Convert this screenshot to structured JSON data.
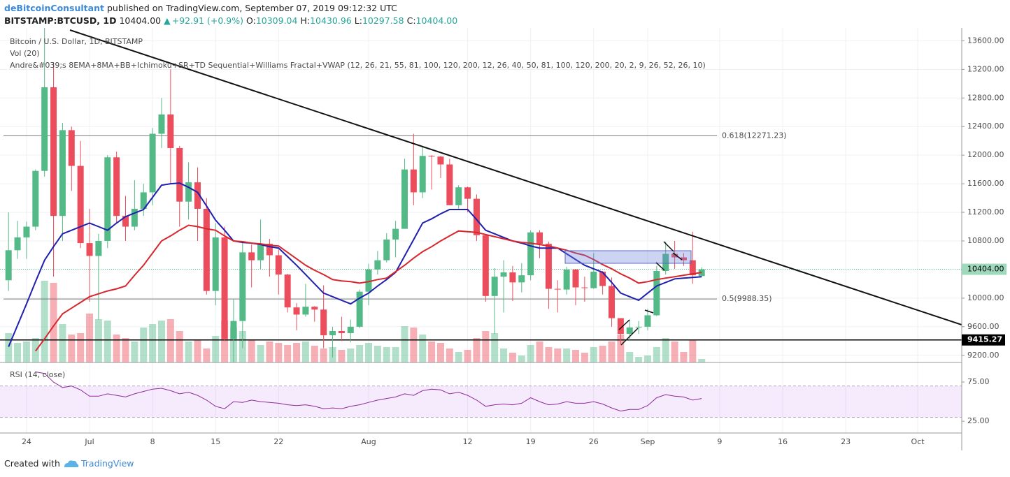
{
  "header": {
    "author": "deBitcoinConsultant",
    "published": "published on TradingView.com, September 07, 2019 09:12:32 UTC",
    "symbol": "BITSTAMP:BTCUSD, 1D",
    "price": "10404.00",
    "arrow": "▲",
    "change": "+92.91 (+0.9%)",
    "ohlc": [
      {
        "key": "O:",
        "value": "10309.04"
      },
      {
        "key": "H:",
        "value": "10430.96"
      },
      {
        "key": "L:",
        "value": "10297.58"
      },
      {
        "key": "C:",
        "value": "10404.00"
      }
    ]
  },
  "chart_data": {
    "type": "candlestick",
    "title": "Bitcoin / U.S. Dollar, 1D, BITSTAMP",
    "indicators": [
      "Vol (20)",
      "Andre&#039;s 8EMA+8MA+BB+Ichimoku+SR+TD Sequential+Williams Fractal+VWAP (12, 26, 21, 55, 81, 100, 120, 200, 12, 26, 40, 50, 81, 100, 120, 200, 20, 2, 9, 26, 52, 26, 10)"
    ],
    "up_color": "#53b987",
    "down_color": "#eb4d5c",
    "categories": [
      null,
      null,
      "24",
      null,
      null,
      null,
      null,
      null,
      null,
      "Jul",
      null,
      null,
      null,
      null,
      null,
      null,
      "8",
      null,
      null,
      null,
      null,
      null,
      null,
      "15",
      null,
      null,
      null,
      null,
      null,
      null,
      "22",
      null,
      null,
      null,
      null,
      null,
      null,
      null,
      null,
      null,
      "Aug",
      null,
      null,
      null,
      null,
      null,
      null,
      null,
      null,
      null,
      null,
      "12",
      null,
      null,
      null,
      null,
      null,
      null,
      "19",
      null,
      null,
      null,
      null,
      null,
      null,
      "26",
      null,
      null,
      null,
      null,
      null,
      "Sep",
      null,
      null,
      null,
      null,
      null,
      null,
      null,
      "9",
      null,
      null,
      null,
      null,
      null,
      null,
      "16",
      null,
      null,
      null,
      null,
      null,
      null,
      "23",
      null,
      null,
      null,
      null,
      null,
      null,
      null,
      "Oct",
      null,
      null,
      null,
      null,
      null
    ],
    "open": [
      10250,
      10670,
      10850,
      11000,
      11780,
      12950,
      11150,
      12350,
      11850,
      10770,
      10590,
      10800,
      11970,
      11150,
      11000,
      11250,
      11480,
      12300,
      12570,
      12100,
      11350,
      11620,
      11250,
      10100,
      10850,
      9430,
      9680,
      10640,
      10530,
      10760,
      10600,
      10330,
      9870,
      9770,
      9880,
      9840,
      9480,
      9540,
      9510,
      9600,
      10090,
      10400,
      10530,
      10820,
      10970,
      11800,
      11480,
      11990,
      11980,
      11870,
      11300,
      11550,
      11390,
      10880,
      10030,
      10300,
      10360,
      10220,
      10320,
      10920,
      10760,
      10130,
      10120,
      10400,
      10150,
      10140,
      10370,
      10170,
      9720,
      9500,
      9590,
      9600,
      9760,
      10380,
      10620,
      10570,
      10530,
      10309.04,
      null,
      null,
      null,
      null,
      null,
      null,
      null,
      null,
      null,
      null,
      null,
      null,
      null,
      null,
      null,
      null,
      null,
      null,
      null,
      null,
      null,
      null,
      null,
      null,
      null,
      null,
      null,
      null,
      null
    ],
    "high": [
      11200,
      11080,
      11070,
      11800,
      13880,
      13300,
      12450,
      12400,
      12200,
      11250,
      10900,
      12000,
      12050,
      11430,
      11650,
      11600,
      12380,
      12800,
      13200,
      12130,
      11900,
      11830,
      11400,
      11050,
      11000,
      9990,
      10780,
      10750,
      11100,
      10830,
      10680,
      10340,
      9930,
      10200,
      9890,
      10180,
      9600,
      9740,
      9700,
      10120,
      10480,
      10660,
      10910,
      11080,
      11950,
      12300,
      12130,
      12000,
      11990,
      11950,
      11580,
      11560,
      11450,
      10880,
      10420,
      10530,
      10450,
      10490,
      10950,
      10950,
      10790,
      10250,
      10440,
      10410,
      10300,
      10630,
      10380,
      10290,
      9720,
      9700,
      9680,
      9850,
      10450,
      10790,
      10800,
      10630,
      10930,
      10430.96,
      null,
      null,
      null,
      null,
      null,
      null,
      null,
      null,
      null,
      null,
      null,
      null,
      null,
      null,
      null,
      null,
      null,
      null,
      null,
      null,
      null,
      null,
      null,
      null,
      null,
      null,
      null,
      null,
      null
    ],
    "low": [
      10100,
      10550,
      10550,
      10950,
      11700,
      10300,
      10800,
      11500,
      10700,
      9950,
      9700,
      10700,
      11050,
      10800,
      10950,
      11150,
      11300,
      12100,
      11600,
      11000,
      11100,
      10800,
      10050,
      9900,
      9400,
      9080,
      9300,
      10150,
      10400,
      10300,
      10050,
      9800,
      9550,
      9740,
      9670,
      9300,
      9170,
      9400,
      9380,
      9580,
      9900,
      10330,
      10500,
      10570,
      10970,
      11300,
      11400,
      11520,
      11680,
      11300,
      11250,
      11200,
      10800,
      9950,
      9500,
      9800,
      9960,
      10080,
      10250,
      10560,
      9850,
      9800,
      10050,
      9900,
      9950,
      10130,
      10050,
      9600,
      9350,
      9400,
      9500,
      9550,
      9750,
      10330,
      10410,
      10450,
      10200,
      10297.58,
      null,
      null,
      null,
      null,
      null,
      null,
      null,
      null,
      null,
      null,
      null,
      null,
      null,
      null,
      null,
      null,
      null,
      null,
      null,
      null,
      null,
      null,
      null,
      null,
      null,
      null,
      null,
      null,
      null
    ],
    "close": [
      10670,
      10850,
      11000,
      11780,
      12950,
      11150,
      12350,
      11850,
      10770,
      10590,
      10800,
      11970,
      11150,
      11000,
      11250,
      11480,
      12300,
      12570,
      12100,
      11350,
      11620,
      11250,
      10100,
      10850,
      9430,
      9680,
      10640,
      10530,
      10760,
      10600,
      10330,
      9870,
      9770,
      9880,
      9840,
      9480,
      9540,
      9510,
      9600,
      10090,
      10400,
      10530,
      10820,
      10970,
      11800,
      11480,
      11990,
      11980,
      11870,
      11300,
      11550,
      11390,
      10880,
      10030,
      10300,
      10360,
      10220,
      10320,
      10920,
      10760,
      10130,
      10120,
      10400,
      10150,
      10140,
      10370,
      10170,
      9720,
      9500,
      9590,
      9600,
      9760,
      10380,
      10620,
      10570,
      10530,
      10320,
      10404,
      null,
      null,
      null,
      null,
      null,
      null,
      null,
      null,
      null,
      null,
      null,
      null,
      null,
      null,
      null,
      null,
      null,
      null,
      null,
      null,
      null,
      null,
      null,
      null,
      null,
      null,
      null,
      null,
      null
    ],
    "volume": [
      42,
      28,
      30,
      35,
      117,
      114,
      55,
      40,
      42,
      70,
      62,
      60,
      40,
      35,
      30,
      50,
      55,
      60,
      62,
      45,
      30,
      33,
      20,
      38,
      60,
      50,
      45,
      32,
      25,
      30,
      28,
      25,
      28,
      30,
      24,
      20,
      22,
      18,
      20,
      25,
      28,
      24,
      22,
      22,
      52,
      50,
      40,
      30,
      28,
      20,
      15,
      18,
      35,
      45,
      42,
      20,
      14,
      10,
      25,
      30,
      22,
      20,
      20,
      18,
      14,
      22,
      24,
      30,
      40,
      15,
      8,
      10,
      22,
      35,
      30,
      15,
      32,
      5,
      null,
      null,
      null,
      null,
      null,
      null,
      null,
      null,
      null,
      null,
      null,
      null,
      null,
      null,
      null,
      null,
      null,
      null,
      null,
      null,
      null,
      null,
      null,
      null,
      null,
      null,
      null,
      null,
      null
    ],
    "overlays": [
      {
        "color": "#1f1fb0",
        "values": [
          9320,
          9620,
          9920,
          10230,
          10530,
          10720,
          10900,
          10950,
          11000,
          11050,
          11000,
          10950,
          11050,
          11140,
          11190,
          11240,
          11410,
          11580,
          11600,
          11610,
          11550,
          11480,
          11290,
          11090,
          10950,
          10800,
          10780,
          10770,
          10750,
          10720,
          10700,
          10580,
          10460,
          10330,
          10200,
          10070,
          10020,
          9970,
          9920,
          10000,
          10070,
          10170,
          10260,
          10360,
          10590,
          10820,
          11050,
          11110,
          11180,
          11240,
          11240,
          11240,
          11100,
          10950,
          10900,
          10850,
          10800,
          10770,
          10730,
          10700,
          10700,
          10700,
          10620,
          10540,
          10460,
          10410,
          10360,
          10220,
          10070,
          10020,
          9970,
          10070,
          10170,
          10220,
          10270,
          10280,
          10290,
          10300,
          null,
          null,
          null,
          null,
          null,
          null,
          null,
          null,
          null,
          null,
          null,
          null,
          null,
          null,
          null,
          null,
          null,
          null,
          null,
          null,
          null,
          null,
          null,
          null,
          null,
          null,
          null,
          null,
          null
        ]
      },
      {
        "color": "#d8262e",
        "values": [
          null,
          null,
          null,
          9260,
          9430,
          9610,
          9780,
          9860,
          9940,
          10020,
          10060,
          10100,
          10130,
          10170,
          10320,
          10460,
          10630,
          10800,
          10870,
          10950,
          11020,
          11000,
          10970,
          10950,
          10870,
          10800,
          10790,
          10770,
          10760,
          10740,
          10730,
          10640,
          10550,
          10460,
          10390,
          10330,
          10260,
          10240,
          10230,
          10210,
          10230,
          10260,
          10280,
          10370,
          10460,
          10560,
          10650,
          10720,
          10800,
          10870,
          10940,
          10930,
          10920,
          10890,
          10860,
          10830,
          10800,
          10780,
          10770,
          10750,
          10730,
          10700,
          10670,
          10630,
          10600,
          10540,
          10470,
          10410,
          10340,
          10280,
          10210,
          10230,
          10260,
          10280,
          10300,
          10320,
          10340,
          10360,
          null,
          null,
          null,
          null,
          null,
          null,
          null,
          null,
          null,
          null,
          null,
          null,
          null,
          null,
          null,
          null,
          null,
          null,
          null,
          null,
          null,
          null,
          null,
          null,
          null,
          null,
          null,
          null,
          null
        ]
      }
    ],
    "ylim": [
      9100,
      13780
    ],
    "yticks": [
      {
        "value": 9200,
        "label": "9200.00"
      },
      {
        "value": 9600,
        "label": "9600.00"
      },
      {
        "value": 10000,
        "label": "10000.00"
      },
      {
        "value": 10400,
        "label": "10400.00"
      },
      {
        "value": 10800,
        "label": "10800.00"
      },
      {
        "value": 11200,
        "label": "11200.00"
      },
      {
        "value": 11600,
        "label": "11600.00"
      },
      {
        "value": 12000,
        "label": "12000.00"
      },
      {
        "value": 12400,
        "label": "12400.00"
      },
      {
        "value": 12800,
        "label": "12800.00"
      },
      {
        "value": 13200,
        "label": "13200.00"
      },
      {
        "value": 13600,
        "label": "13600.00"
      }
    ],
    "grid": true,
    "levels": [
      {
        "label": "0.618(12271.23)",
        "value": 12271.23
      },
      {
        "label": "0.5(9988.35)",
        "value": 9988.35
      }
    ],
    "support": {
      "label": "9415.27",
      "value": 9415.27
    },
    "last_price": {
      "label": "10404.00",
      "value": 10404
    },
    "rsi": {
      "title": "RSI (14, close)",
      "color": "#8e2a9c",
      "ylim": [
        10,
        100
      ],
      "band": [
        30,
        70
      ],
      "yticks": [
        {
          "value": 75,
          "label": "75.00"
        },
        {
          "value": 25,
          "label": "25.00"
        }
      ],
      "values": [
        null,
        null,
        null,
        88,
        86,
        75,
        68,
        70,
        65,
        57,
        57,
        60,
        58,
        56,
        60,
        63,
        66,
        67,
        64,
        60,
        62,
        58,
        52,
        44,
        41,
        50,
        49,
        52,
        50,
        49,
        48,
        46,
        45,
        46,
        44,
        41,
        42,
        41,
        44,
        46,
        49,
        52,
        54,
        56,
        60,
        58,
        64,
        66,
        65,
        60,
        62,
        58,
        52,
        44,
        46,
        47,
        46,
        48,
        55,
        50,
        46,
        47,
        50,
        48,
        48,
        50,
        47,
        42,
        38,
        40,
        40,
        45,
        55,
        59,
        57,
        56,
        52,
        54,
        null,
        null,
        null,
        null,
        null,
        null,
        null,
        null,
        null,
        null,
        null,
        null,
        null,
        null,
        null,
        null,
        null,
        null,
        null,
        null,
        null,
        null,
        null,
        null,
        null,
        null,
        null,
        null,
        null
      ]
    }
  },
  "footer": {
    "created": "Created with",
    "brand": "TradingView"
  }
}
